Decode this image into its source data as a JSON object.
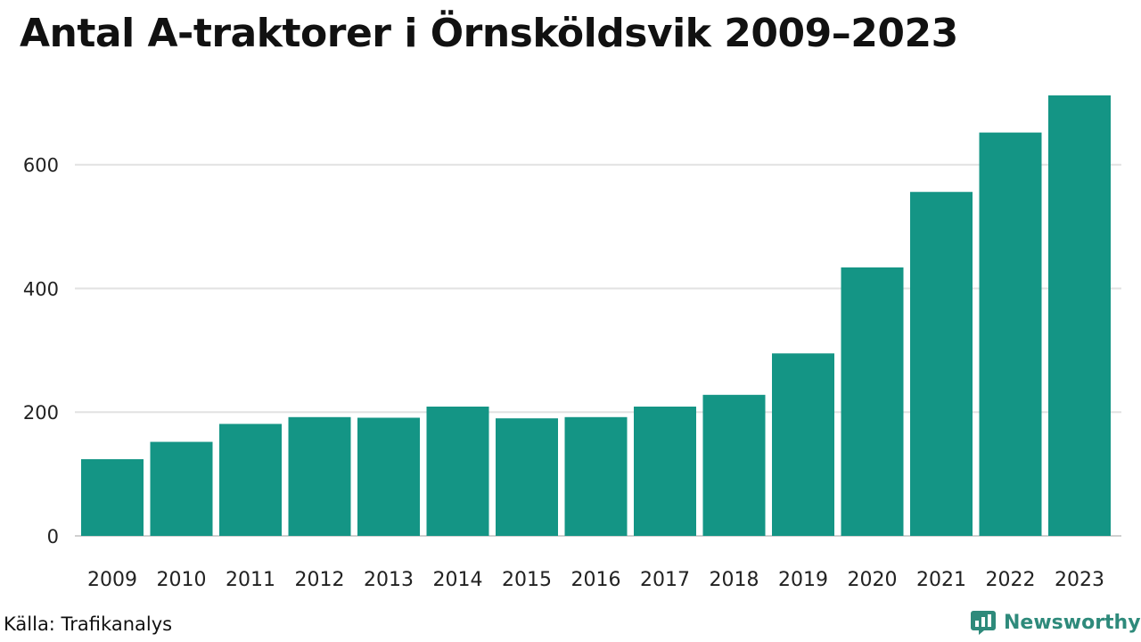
{
  "title": "Antal A-traktorer i Örnsköldsvik 2009–2023",
  "source": "Källa: Trafikanalys",
  "brand": {
    "name": "Newsworthy",
    "icon": "bar-chart-speech-bubble-icon",
    "color": "#2e8a7b"
  },
  "colors": {
    "bar": "#149585",
    "grid": "#e2e2e2",
    "baseline": "#d0d0d0",
    "text": "#111111"
  },
  "chart_data": {
    "type": "bar",
    "title": "Antal A-traktorer i Örnsköldsvik 2009–2023",
    "xlabel": "",
    "ylabel": "",
    "categories": [
      "2009",
      "2010",
      "2011",
      "2012",
      "2013",
      "2014",
      "2015",
      "2016",
      "2017",
      "2018",
      "2019",
      "2020",
      "2021",
      "2022",
      "2023"
    ],
    "values": [
      124,
      152,
      181,
      192,
      191,
      209,
      190,
      192,
      209,
      228,
      295,
      434,
      556,
      652,
      712
    ],
    "yticks": [
      0,
      200,
      400,
      600
    ],
    "ylim": [
      0,
      712
    ],
    "grid": true,
    "legend": "none"
  }
}
